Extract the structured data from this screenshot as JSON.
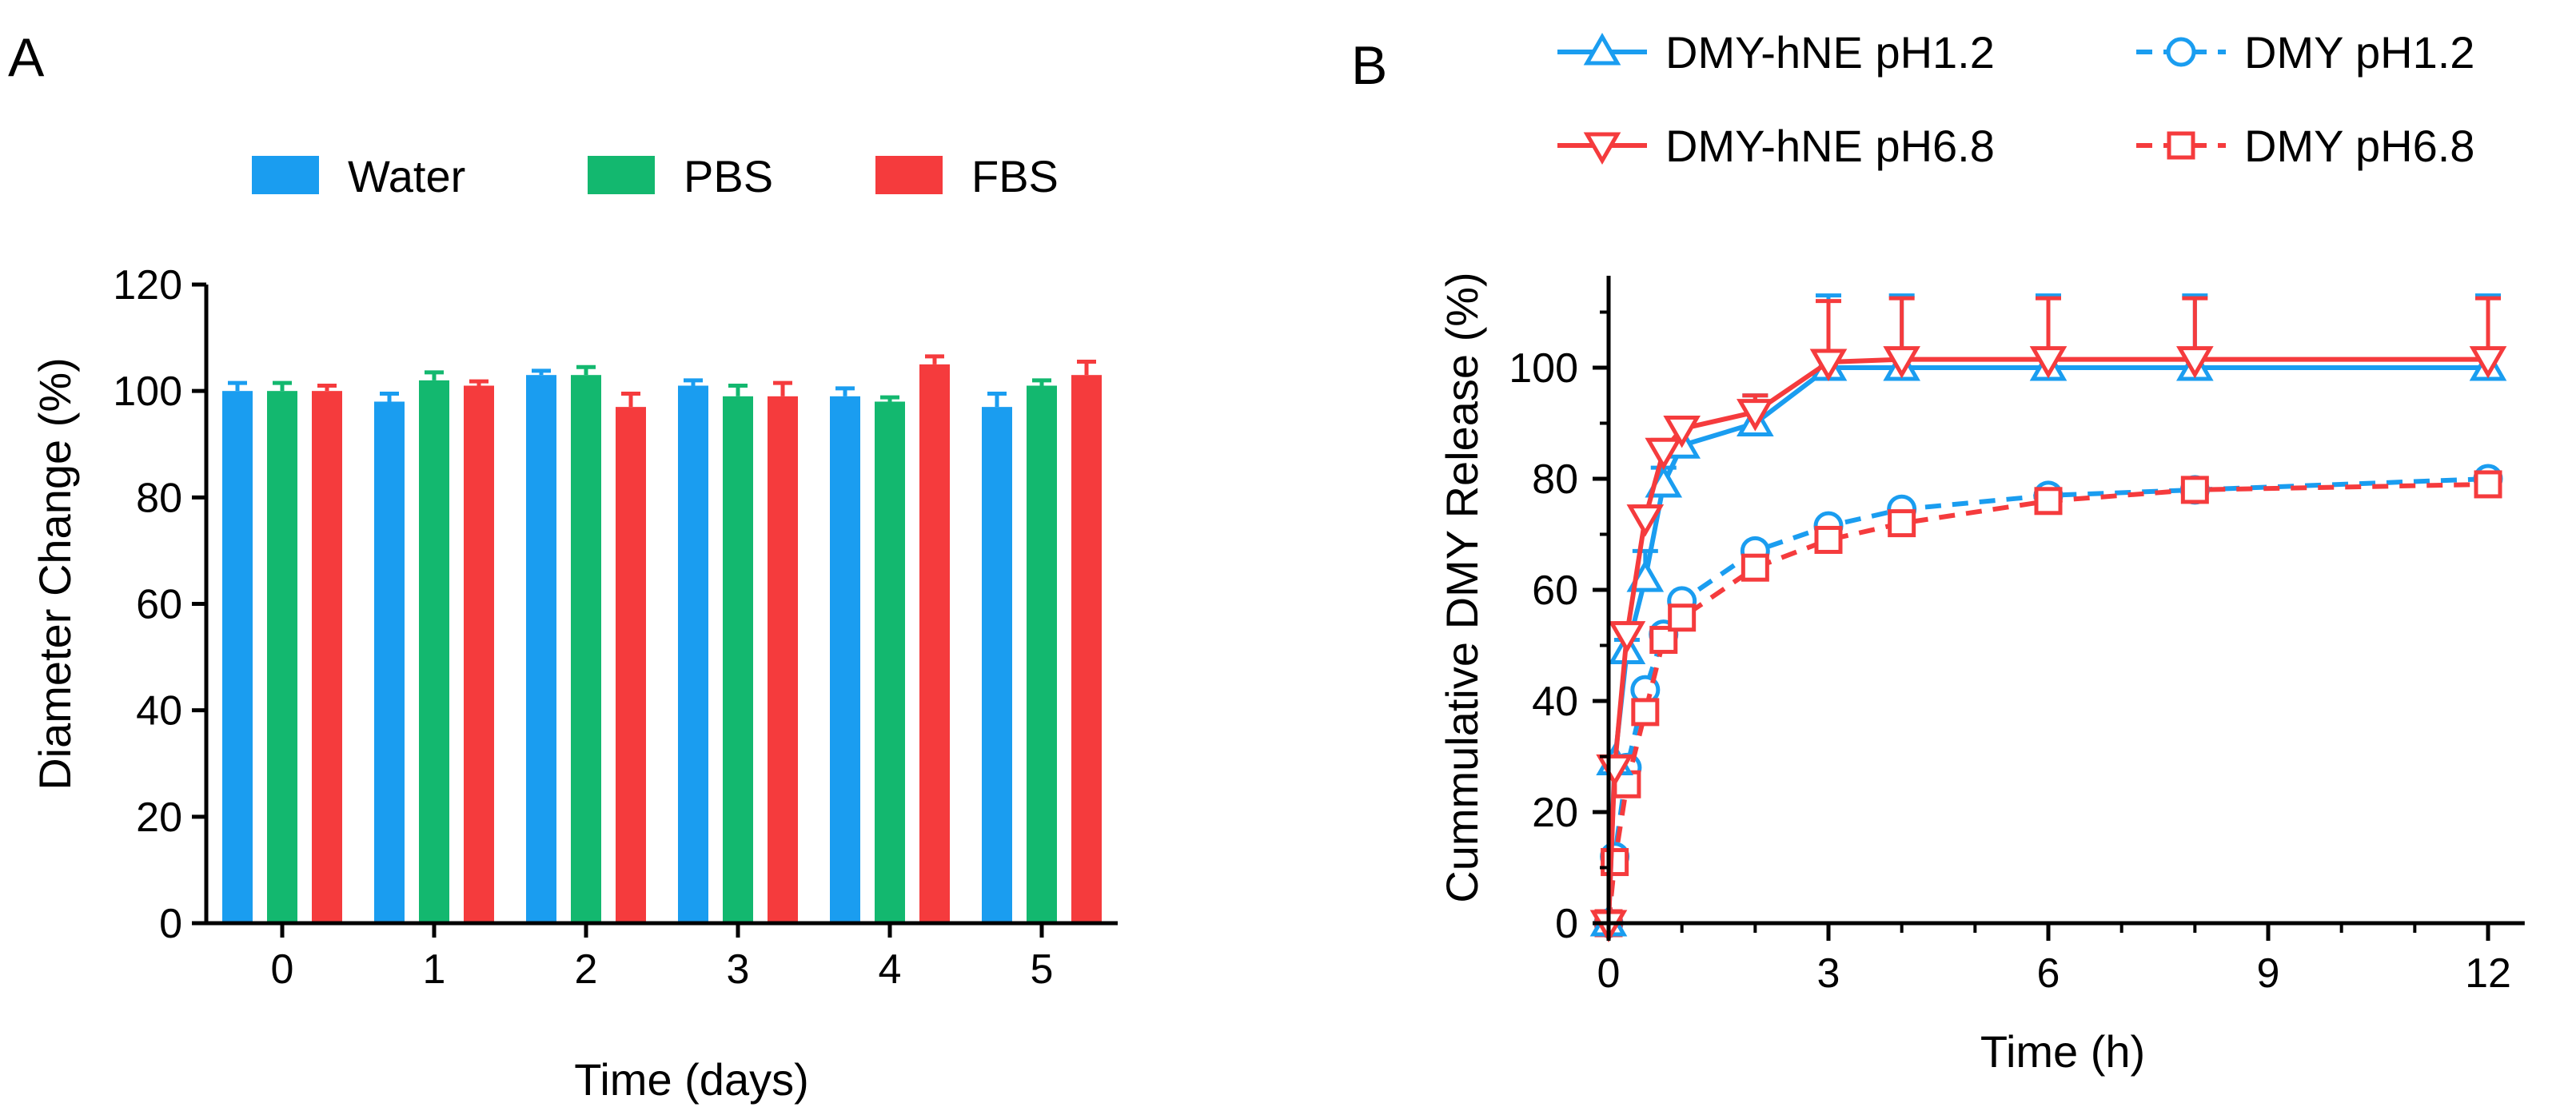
{
  "panels": {
    "A": {
      "label": "A"
    },
    "B": {
      "label": "B"
    }
  },
  "chart_data": [
    {
      "id": "A",
      "type": "bar",
      "title": "",
      "xlabel": "Time (days)",
      "ylabel": "Diameter Change (%)",
      "ylim": [
        0,
        120
      ],
      "yticks": [
        "0",
        "20",
        "40",
        "60",
        "80",
        "100",
        "120"
      ],
      "categories": [
        "0",
        "1",
        "2",
        "3",
        "4",
        "5"
      ],
      "legend_position": "top",
      "series": [
        {
          "name": "Water",
          "color": "#1a9df0",
          "values": [
            100,
            98,
            103,
            101,
            99,
            97
          ],
          "errors": [
            1.5,
            1.5,
            0.8,
            1.0,
            1.5,
            2.5
          ]
        },
        {
          "name": "PBS",
          "color": "#13b86f",
          "values": [
            100,
            102,
            103,
            99,
            98,
            101
          ],
          "errors": [
            1.5,
            1.5,
            1.5,
            2.0,
            0.8,
            1.0
          ]
        },
        {
          "name": "FBS",
          "color": "#f53b3d",
          "values": [
            100,
            101,
            97,
            99,
            105,
            103
          ],
          "errors": [
            1.0,
            0.8,
            2.5,
            2.5,
            1.5,
            2.5
          ]
        }
      ]
    },
    {
      "id": "B",
      "type": "line",
      "title": "",
      "xlabel": "Time (h)",
      "ylabel": "Cummulative DMY Release (%)",
      "xlim": [
        0,
        12.5
      ],
      "ylim": [
        0,
        115
      ],
      "xticks": [
        "0",
        "3",
        "6",
        "9",
        "12"
      ],
      "yticks": [
        "0",
        "20",
        "40",
        "60",
        "80",
        "100"
      ],
      "legend_position": "top",
      "series": [
        {
          "name": "DMY-hNE pH1.2",
          "color": "#1a9df0",
          "dashed": false,
          "marker": "triangle-up",
          "x": [
            0,
            0.083,
            0.25,
            0.5,
            0.75,
            1,
            2,
            3,
            4,
            6,
            8,
            12
          ],
          "y": [
            0,
            29,
            49,
            62,
            79,
            86,
            90,
            100,
            100,
            100,
            100,
            100
          ],
          "errors": [
            0,
            0,
            2,
            5,
            3,
            4,
            5,
            13,
            13,
            13,
            13,
            13
          ]
        },
        {
          "name": "DMY-hNE pH6.8",
          "color": "#f53b3d",
          "dashed": false,
          "marker": "triangle-down",
          "x": [
            0,
            0.083,
            0.25,
            0.5,
            0.75,
            1,
            2,
            3,
            4,
            6,
            8,
            12
          ],
          "y": [
            0,
            28,
            52,
            73,
            85,
            89,
            92,
            101,
            101.5,
            101.5,
            101.5,
            101.5
          ],
          "errors": [
            0,
            0,
            2,
            2,
            2,
            2,
            3,
            11,
            11,
            11,
            11,
            11
          ]
        },
        {
          "name": "DMY pH1.2",
          "color": "#1a9df0",
          "dashed": true,
          "marker": "circle",
          "x": [
            0,
            0.083,
            0.25,
            0.5,
            0.75,
            1,
            2,
            3,
            4,
            6,
            8,
            12
          ],
          "y": [
            0,
            12,
            28,
            42,
            52,
            58,
            67,
            71.5,
            74.5,
            77,
            78,
            80
          ],
          "errors": [
            0,
            0,
            1,
            1,
            1,
            1,
            1,
            1,
            1,
            1,
            1,
            1
          ]
        },
        {
          "name": "DMY pH6.8",
          "color": "#f53b3d",
          "dashed": true,
          "marker": "square",
          "x": [
            0,
            0.083,
            0.25,
            0.5,
            0.75,
            1,
            2,
            3,
            4,
            6,
            8,
            12
          ],
          "y": [
            0,
            11,
            25,
            38,
            51,
            55,
            64,
            69,
            72,
            76,
            78,
            79
          ],
          "errors": [
            0,
            0,
            1,
            1,
            1,
            1,
            1,
            1,
            1,
            1,
            1,
            1
          ]
        }
      ]
    }
  ]
}
